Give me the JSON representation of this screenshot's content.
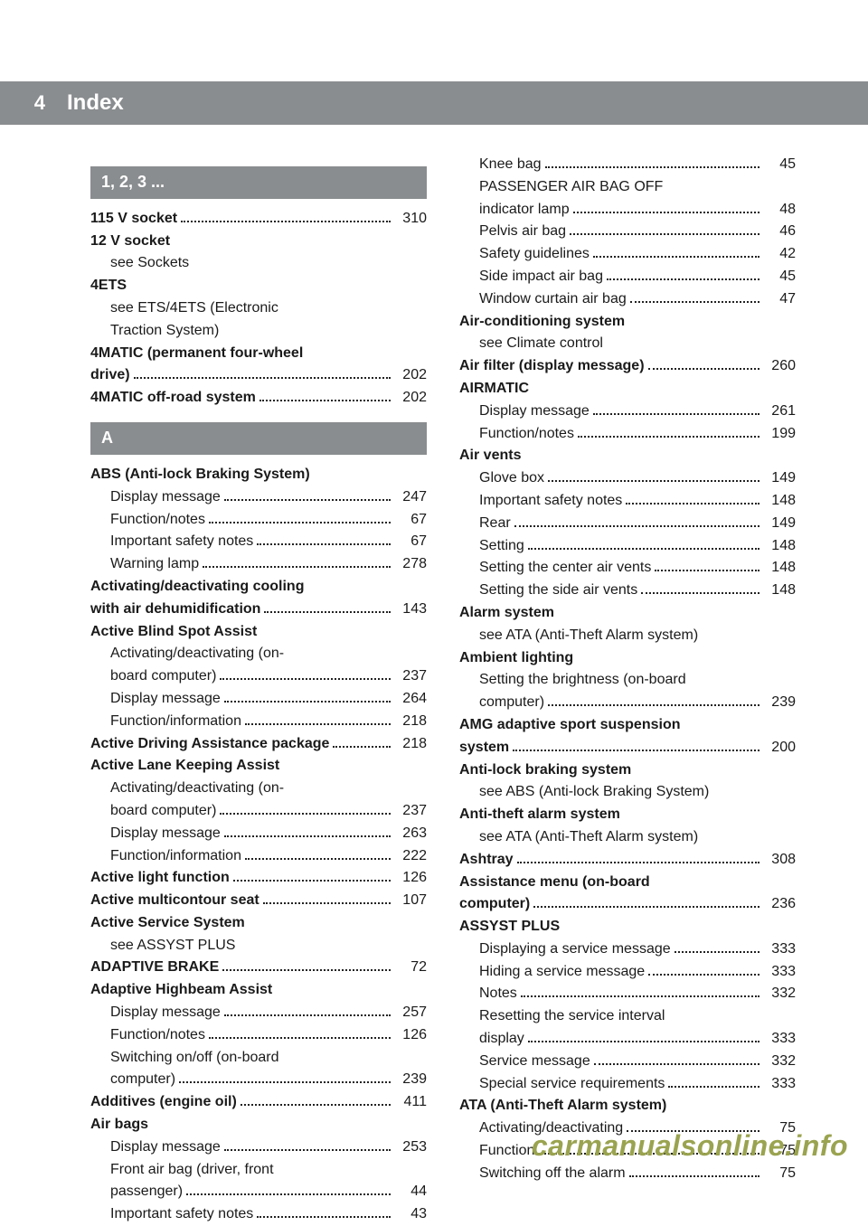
{
  "page_number": "4",
  "title": "Index",
  "footer": "carmanualsonline.info",
  "colors": {
    "bar_bg": "#8a8d8f",
    "bar_text": "#ffffff",
    "body_text": "#1a1a1a",
    "footer_text": "#9aa34f",
    "page_bg": "#ffffff"
  },
  "left_column": [
    {
      "type": "section",
      "label": "1, 2, 3 ..."
    },
    {
      "type": "row",
      "bold": true,
      "sub": false,
      "text": "115 V socket",
      "page": "310"
    },
    {
      "type": "line",
      "bold": true,
      "sub": false,
      "text": "12 V socket"
    },
    {
      "type": "line",
      "bold": false,
      "sub": true,
      "text": "see Sockets"
    },
    {
      "type": "line",
      "bold": true,
      "sub": false,
      "text": "4ETS"
    },
    {
      "type": "line",
      "bold": false,
      "sub": true,
      "text": "see ETS/4ETS (Electronic"
    },
    {
      "type": "line",
      "bold": false,
      "sub": true,
      "text": "Traction System)"
    },
    {
      "type": "line",
      "bold": true,
      "sub": false,
      "text": "4MATIC (permanent four-wheel"
    },
    {
      "type": "row",
      "bold": true,
      "sub": false,
      "text": "drive)",
      "page": "202"
    },
    {
      "type": "row",
      "bold": true,
      "sub": false,
      "text": "4MATIC off-road system",
      "page": "202"
    },
    {
      "type": "section",
      "label": "A"
    },
    {
      "type": "line",
      "bold": true,
      "sub": false,
      "text": "ABS (Anti-lock Braking System)"
    },
    {
      "type": "row",
      "bold": false,
      "sub": true,
      "text": "Display message",
      "page": "247"
    },
    {
      "type": "row",
      "bold": false,
      "sub": true,
      "text": "Function/notes",
      "page": "67"
    },
    {
      "type": "row",
      "bold": false,
      "sub": true,
      "text": "Important safety notes",
      "page": "67"
    },
    {
      "type": "row",
      "bold": false,
      "sub": true,
      "text": "Warning lamp",
      "page": "278"
    },
    {
      "type": "line",
      "bold": true,
      "sub": false,
      "text": "Activating/deactivating cooling"
    },
    {
      "type": "row",
      "bold": true,
      "sub": false,
      "text": "with air dehumidification",
      "page": "143"
    },
    {
      "type": "line",
      "bold": true,
      "sub": false,
      "text": "Active Blind Spot Assist"
    },
    {
      "type": "line",
      "bold": false,
      "sub": true,
      "text": "Activating/deactivating (on-"
    },
    {
      "type": "row",
      "bold": false,
      "sub": true,
      "text": "board computer)",
      "page": "237"
    },
    {
      "type": "row",
      "bold": false,
      "sub": true,
      "text": "Display message",
      "page": "264"
    },
    {
      "type": "row",
      "bold": false,
      "sub": true,
      "text": "Function/information",
      "page": "218"
    },
    {
      "type": "row",
      "bold": true,
      "sub": false,
      "text": "Active Driving Assistance package",
      "page": "218"
    },
    {
      "type": "line",
      "bold": true,
      "sub": false,
      "text": "Active Lane Keeping Assist"
    },
    {
      "type": "line",
      "bold": false,
      "sub": true,
      "text": "Activating/deactivating (on-"
    },
    {
      "type": "row",
      "bold": false,
      "sub": true,
      "text": "board computer)",
      "page": "237"
    },
    {
      "type": "row",
      "bold": false,
      "sub": true,
      "text": "Display message",
      "page": "263"
    },
    {
      "type": "row",
      "bold": false,
      "sub": true,
      "text": "Function/information",
      "page": "222"
    },
    {
      "type": "row",
      "bold": true,
      "sub": false,
      "text": "Active light function",
      "page": "126"
    },
    {
      "type": "row",
      "bold": true,
      "sub": false,
      "text": "Active multicontour seat",
      "page": "107"
    },
    {
      "type": "line",
      "bold": true,
      "sub": false,
      "text": "Active Service System"
    },
    {
      "type": "line",
      "bold": false,
      "sub": true,
      "text": "see ASSYST PLUS"
    },
    {
      "type": "row",
      "bold": true,
      "sub": false,
      "text": "ADAPTIVE BRAKE",
      "page": "72"
    },
    {
      "type": "line",
      "bold": true,
      "sub": false,
      "text": "Adaptive Highbeam Assist"
    },
    {
      "type": "row",
      "bold": false,
      "sub": true,
      "text": "Display message",
      "page": "257"
    },
    {
      "type": "row",
      "bold": false,
      "sub": true,
      "text": "Function/notes",
      "page": "126"
    },
    {
      "type": "line",
      "bold": false,
      "sub": true,
      "text": "Switching on/off (on-board"
    },
    {
      "type": "row",
      "bold": false,
      "sub": true,
      "text": "computer)",
      "page": "239"
    },
    {
      "type": "row",
      "bold": true,
      "sub": false,
      "text": "Additives (engine oil)",
      "page": "411"
    },
    {
      "type": "line",
      "bold": true,
      "sub": false,
      "text": "Air bags"
    },
    {
      "type": "row",
      "bold": false,
      "sub": true,
      "text": "Display message",
      "page": "253"
    },
    {
      "type": "line",
      "bold": false,
      "sub": true,
      "text": "Front air bag (driver, front"
    },
    {
      "type": "row",
      "bold": false,
      "sub": true,
      "text": "passenger)",
      "page": "44"
    },
    {
      "type": "row",
      "bold": false,
      "sub": true,
      "text": "Important safety notes",
      "page": "43"
    }
  ],
  "right_column": [
    {
      "type": "row",
      "bold": false,
      "sub": true,
      "text": "Knee bag",
      "page": "45"
    },
    {
      "type": "line",
      "bold": false,
      "sub": true,
      "text": "PASSENGER AIR BAG OFF"
    },
    {
      "type": "row",
      "bold": false,
      "sub": true,
      "text": "indicator lamp",
      "page": "48"
    },
    {
      "type": "row",
      "bold": false,
      "sub": true,
      "text": "Pelvis air bag",
      "page": "46"
    },
    {
      "type": "row",
      "bold": false,
      "sub": true,
      "text": "Safety guidelines",
      "page": "42"
    },
    {
      "type": "row",
      "bold": false,
      "sub": true,
      "text": "Side impact air bag",
      "page": "45"
    },
    {
      "type": "row",
      "bold": false,
      "sub": true,
      "text": "Window curtain air bag",
      "page": "47"
    },
    {
      "type": "line",
      "bold": true,
      "sub": false,
      "text": "Air-conditioning system"
    },
    {
      "type": "line",
      "bold": false,
      "sub": true,
      "text": "see Climate control"
    },
    {
      "type": "row",
      "bold": true,
      "sub": false,
      "text": "Air filter (display message)",
      "page": "260"
    },
    {
      "type": "line",
      "bold": true,
      "sub": false,
      "text": "AIRMATIC"
    },
    {
      "type": "row",
      "bold": false,
      "sub": true,
      "text": "Display message",
      "page": "261"
    },
    {
      "type": "row",
      "bold": false,
      "sub": true,
      "text": "Function/notes",
      "page": "199"
    },
    {
      "type": "line",
      "bold": true,
      "sub": false,
      "text": "Air vents"
    },
    {
      "type": "row",
      "bold": false,
      "sub": true,
      "text": "Glove box",
      "page": "149"
    },
    {
      "type": "row",
      "bold": false,
      "sub": true,
      "text": "Important safety notes",
      "page": "148"
    },
    {
      "type": "row",
      "bold": false,
      "sub": true,
      "text": "Rear",
      "page": "149"
    },
    {
      "type": "row",
      "bold": false,
      "sub": true,
      "text": "Setting",
      "page": "148"
    },
    {
      "type": "row",
      "bold": false,
      "sub": true,
      "text": "Setting the center air vents",
      "page": "148"
    },
    {
      "type": "row",
      "bold": false,
      "sub": true,
      "text": "Setting the side air vents",
      "page": "148"
    },
    {
      "type": "line",
      "bold": true,
      "sub": false,
      "text": "Alarm system"
    },
    {
      "type": "line",
      "bold": false,
      "sub": true,
      "text": "see ATA (Anti-Theft Alarm system)"
    },
    {
      "type": "line",
      "bold": true,
      "sub": false,
      "text": "Ambient lighting"
    },
    {
      "type": "line",
      "bold": false,
      "sub": true,
      "text": "Setting the brightness (on-board"
    },
    {
      "type": "row",
      "bold": false,
      "sub": true,
      "text": "computer)",
      "page": "239"
    },
    {
      "type": "line",
      "bold": true,
      "sub": false,
      "text": "AMG adaptive sport suspension"
    },
    {
      "type": "row",
      "bold": true,
      "sub": false,
      "text": "system",
      "page": "200"
    },
    {
      "type": "line",
      "bold": true,
      "sub": false,
      "text": "Anti-lock braking system"
    },
    {
      "type": "line",
      "bold": false,
      "sub": true,
      "text": "see ABS (Anti-lock Braking System)"
    },
    {
      "type": "line",
      "bold": true,
      "sub": false,
      "text": "Anti-theft alarm system"
    },
    {
      "type": "line",
      "bold": false,
      "sub": true,
      "text": "see ATA (Anti-Theft Alarm system)"
    },
    {
      "type": "row",
      "bold": true,
      "sub": false,
      "text": "Ashtray",
      "page": "308"
    },
    {
      "type": "line",
      "bold": true,
      "sub": false,
      "text": "Assistance menu (on-board"
    },
    {
      "type": "row",
      "bold": true,
      "sub": false,
      "text": "computer)",
      "page": "236"
    },
    {
      "type": "line",
      "bold": true,
      "sub": false,
      "text": "ASSYST PLUS"
    },
    {
      "type": "row",
      "bold": false,
      "sub": true,
      "text": "Displaying a service message",
      "page": "333"
    },
    {
      "type": "row",
      "bold": false,
      "sub": true,
      "text": "Hiding a service message",
      "page": "333"
    },
    {
      "type": "row",
      "bold": false,
      "sub": true,
      "text": "Notes",
      "page": "332"
    },
    {
      "type": "line",
      "bold": false,
      "sub": true,
      "text": "Resetting the service interval"
    },
    {
      "type": "row",
      "bold": false,
      "sub": true,
      "text": "display",
      "page": "333"
    },
    {
      "type": "row",
      "bold": false,
      "sub": true,
      "text": "Service message",
      "page": "332"
    },
    {
      "type": "row",
      "bold": false,
      "sub": true,
      "text": "Special service requirements",
      "page": "333"
    },
    {
      "type": "line",
      "bold": true,
      "sub": false,
      "text": "ATA (Anti-Theft Alarm system)"
    },
    {
      "type": "row",
      "bold": false,
      "sub": true,
      "text": "Activating/deactivating",
      "page": "75"
    },
    {
      "type": "row",
      "bold": false,
      "sub": true,
      "text": "Function",
      "page": "75"
    },
    {
      "type": "row",
      "bold": false,
      "sub": true,
      "text": "Switching off the alarm",
      "page": "75"
    }
  ]
}
